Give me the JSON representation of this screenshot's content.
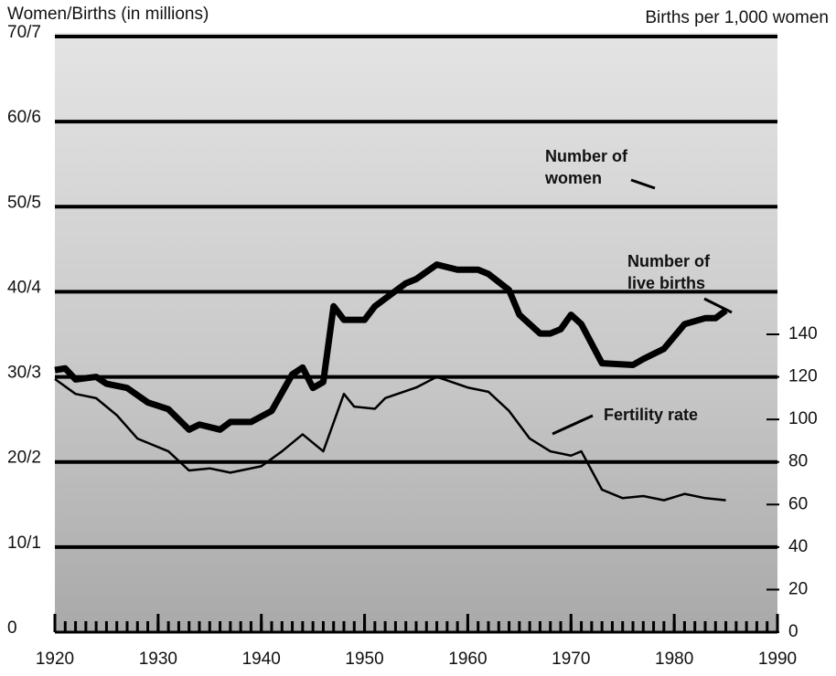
{
  "chart_data": {
    "type": "line",
    "y_axis_label": "Women/Births (in millions)",
    "y2_axis_label": "Births per 1,000 women",
    "xlim": [
      1920,
      1990
    ],
    "xticks": [
      1920,
      1930,
      1940,
      1950,
      1960,
      1970,
      1980,
      1990
    ],
    "ylim": [
      0,
      70
    ],
    "yticks": [
      0,
      {
        "value": 10,
        "label": "10/1"
      },
      {
        "value": 20,
        "label": "20/2"
      },
      {
        "value": 30,
        "label": "30/3"
      },
      {
        "value": 40,
        "label": "40/4"
      },
      {
        "value": 50,
        "label": "50/5"
      },
      {
        "value": 60,
        "label": "60/6"
      },
      {
        "value": 70,
        "label": "70/7"
      }
    ],
    "y2lim": [
      0,
      280
    ],
    "y2ticks": [
      0,
      20,
      40,
      60,
      80,
      100,
      120,
      140
    ],
    "grid": true,
    "series": [
      {
        "name": "Number of live births",
        "color": "#000000",
        "axis": "y",
        "x": [
          1920,
          1921,
          1922,
          1924,
          1925,
          1927,
          1929,
          1931,
          1933,
          1934,
          1936,
          1937,
          1939,
          1941,
          1943,
          1944,
          1945,
          1946,
          1947,
          1948,
          1950,
          1951,
          1954,
          1955,
          1957,
          1959,
          1961,
          1962,
          1964,
          1965,
          1967,
          1968,
          1969,
          1970,
          1971,
          1973,
          1976,
          1977,
          1979,
          1981,
          1983,
          1984,
          1985
        ],
        "values": [
          30.8,
          31,
          29.7,
          30,
          29.2,
          28.7,
          27,
          26.2,
          23.8,
          24.4,
          23.8,
          24.7,
          24.7,
          26,
          30.3,
          31.1,
          28.7,
          29.4,
          38.3,
          36.7,
          36.7,
          38.3,
          41,
          41.5,
          43.2,
          42.6,
          42.6,
          42.1,
          40.2,
          37.3,
          35.1,
          35.1,
          35.6,
          37.3,
          36.2,
          31.6,
          31.4,
          32.1,
          33.3,
          36.2,
          36.9,
          36.9,
          37.8
        ]
      },
      {
        "name": "Fertility rate",
        "color": "#000000",
        "axis": "y2",
        "x": [
          1920,
          1922,
          1924,
          1926,
          1928,
          1931,
          1933,
          1935,
          1937,
          1940,
          1942,
          1944,
          1946,
          1948,
          1949,
          1951,
          1952,
          1955,
          1957,
          1960,
          1962,
          1964,
          1966,
          1968,
          1970,
          1971,
          1973,
          1975,
          1977,
          1979,
          1981,
          1983,
          1985
        ],
        "values": [
          119,
          112,
          110,
          102,
          91,
          85,
          76,
          77,
          75,
          78,
          85,
          93,
          85,
          112,
          106,
          105,
          110,
          115,
          120,
          115,
          113,
          104,
          91,
          85,
          83,
          85,
          67,
          63,
          64,
          62,
          65,
          63,
          62
        ]
      }
    ],
    "annotations": [
      {
        "lines": [
          "Number of",
          "women"
        ]
      },
      {
        "lines": [
          "Number of",
          "live births"
        ]
      },
      {
        "lines": [
          "Fertility rate"
        ]
      }
    ]
  }
}
